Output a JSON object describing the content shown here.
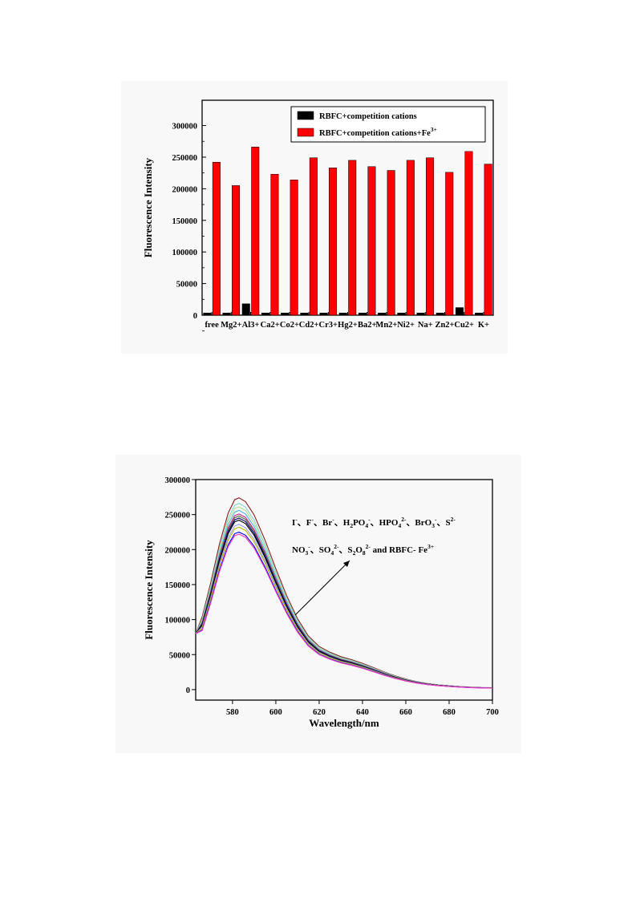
{
  "page": {
    "background": "#ffffff",
    "panel_background": "#f8f8f8"
  },
  "chart_data": [
    {
      "type": "bar",
      "title": "",
      "xlabel": "",
      "ylabel": "Fluorescence Intensity",
      "ylim": [
        0,
        340000
      ],
      "yticks": [
        0,
        50000,
        100000,
        150000,
        200000,
        250000,
        300000
      ],
      "ytick_labels": [
        "0",
        "50000",
        "100000",
        "150000",
        "200000",
        "250000",
        "300000"
      ],
      "categories": [
        "free",
        "Mg2+",
        "Al3+",
        "Ca2+",
        "Co2+",
        "Cd2+",
        "Cr3+",
        "Hg2+",
        "Ba2+",
        "Mn2+",
        "Ni2+",
        "Na+",
        "Zn2+",
        "Cu2+",
        "K+"
      ],
      "series": [
        {
          "name": "RBFC+competition cations",
          "color": "#000000",
          "values": [
            3500,
            3500,
            18000,
            3500,
            3500,
            3500,
            3500,
            3500,
            3500,
            3500,
            3500,
            3500,
            3500,
            12000,
            3500
          ]
        },
        {
          "name": "RBFC+competition cations+Fe3+",
          "color": "#ff0000",
          "values": [
            242000,
            205000,
            266000,
            223000,
            214000,
            249000,
            233000,
            245000,
            235000,
            229000,
            245000,
            249000,
            226000,
            259000,
            239000
          ]
        }
      ],
      "legend": {
        "placement": "top-right",
        "entries": [
          {
            "text": "RBFC+competition cations"
          },
          {
            "text": "RBFC+competition cations+Fe",
            "sup": "3+"
          }
        ]
      },
      "grid": false
    },
    {
      "type": "line",
      "title": "",
      "xlabel": "Wavelength/nm",
      "ylabel": "Fluorescence Intensity",
      "xlim": [
        563,
        700
      ],
      "ylim": [
        -15000,
        300000
      ],
      "xticks": [
        580,
        600,
        620,
        640,
        660,
        680,
        700
      ],
      "yticks": [
        0,
        50000,
        100000,
        150000,
        200000,
        250000,
        300000
      ],
      "ytick_labels": [
        "0",
        "50000",
        "100000",
        "150000",
        "200000",
        "250000",
        "300000"
      ],
      "x": [
        563,
        566,
        570,
        574,
        578,
        581,
        583,
        586,
        590,
        595,
        600,
        605,
        610,
        615,
        620,
        625,
        630,
        635,
        640,
        645,
        650,
        655,
        660,
        665,
        670,
        675,
        680,
        685,
        690,
        695,
        700
      ],
      "base_shape": [
        0.27,
        0.38,
        0.56,
        0.76,
        0.92,
        0.99,
        1.0,
        0.98,
        0.91,
        0.78,
        0.63,
        0.49,
        0.37,
        0.28,
        0.225,
        0.195,
        0.172,
        0.156,
        0.137,
        0.115,
        0.092,
        0.072,
        0.055,
        0.042,
        0.032,
        0.025,
        0.02,
        0.016,
        0.013,
        0.011,
        0.01
      ],
      "series": [
        {
          "peak": 274000,
          "color": "#8b1a1a"
        },
        {
          "peak": 266000,
          "color": "#7fd7d0"
        },
        {
          "peak": 261000,
          "color": "#b8e08a"
        },
        {
          "peak": 256000,
          "color": "#4db3e6"
        },
        {
          "peak": 251000,
          "color": "#c71585"
        },
        {
          "peak": 248000,
          "color": "#556b2f"
        },
        {
          "peak": 245000,
          "color": "#000080"
        },
        {
          "peak": 242000,
          "color": "#000000"
        },
        {
          "peak": 236000,
          "color": "#9999ff"
        },
        {
          "peak": 232000,
          "color": "#b8b800"
        },
        {
          "peak": 225000,
          "color": "#0000ff"
        },
        {
          "peak": 222000,
          "color": "#ff33cc"
        }
      ],
      "annotation": {
        "parts": [
          [
            "I",
            "sup",
            "-",
            "text",
            "、F",
            "sup",
            "-",
            "text",
            "、Br",
            "sup",
            "-",
            "text",
            "、H",
            "sub",
            "2",
            "text",
            "PO",
            "sub",
            "4",
            "sup",
            "-",
            "text",
            "、HPO",
            "sub",
            "4",
            "sup",
            "2-",
            "text",
            "、BrO",
            "sub",
            "3",
            "sup",
            "-",
            "text",
            "、S",
            "sup",
            "2-"
          ],
          [
            "NO",
            "sub",
            "3",
            "sup",
            "-",
            "text",
            "、SO",
            "sub",
            "4",
            "sup",
            "2-",
            "text",
            "、S",
            "sub",
            "2",
            "text",
            "O",
            "sub",
            "8",
            "sup",
            "2-",
            "text",
            " and RBFC- Fe",
            "sup",
            "3+"
          ]
        ]
      },
      "grid": false
    }
  ]
}
